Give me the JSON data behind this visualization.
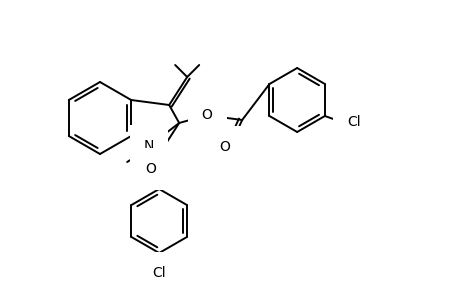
{
  "background_color": "#ffffff",
  "lw": 1.4,
  "figsize": [
    4.6,
    3.0
  ],
  "dpi": 100,
  "xlim": [
    0,
    460
  ],
  "ylim": [
    0,
    300
  ]
}
